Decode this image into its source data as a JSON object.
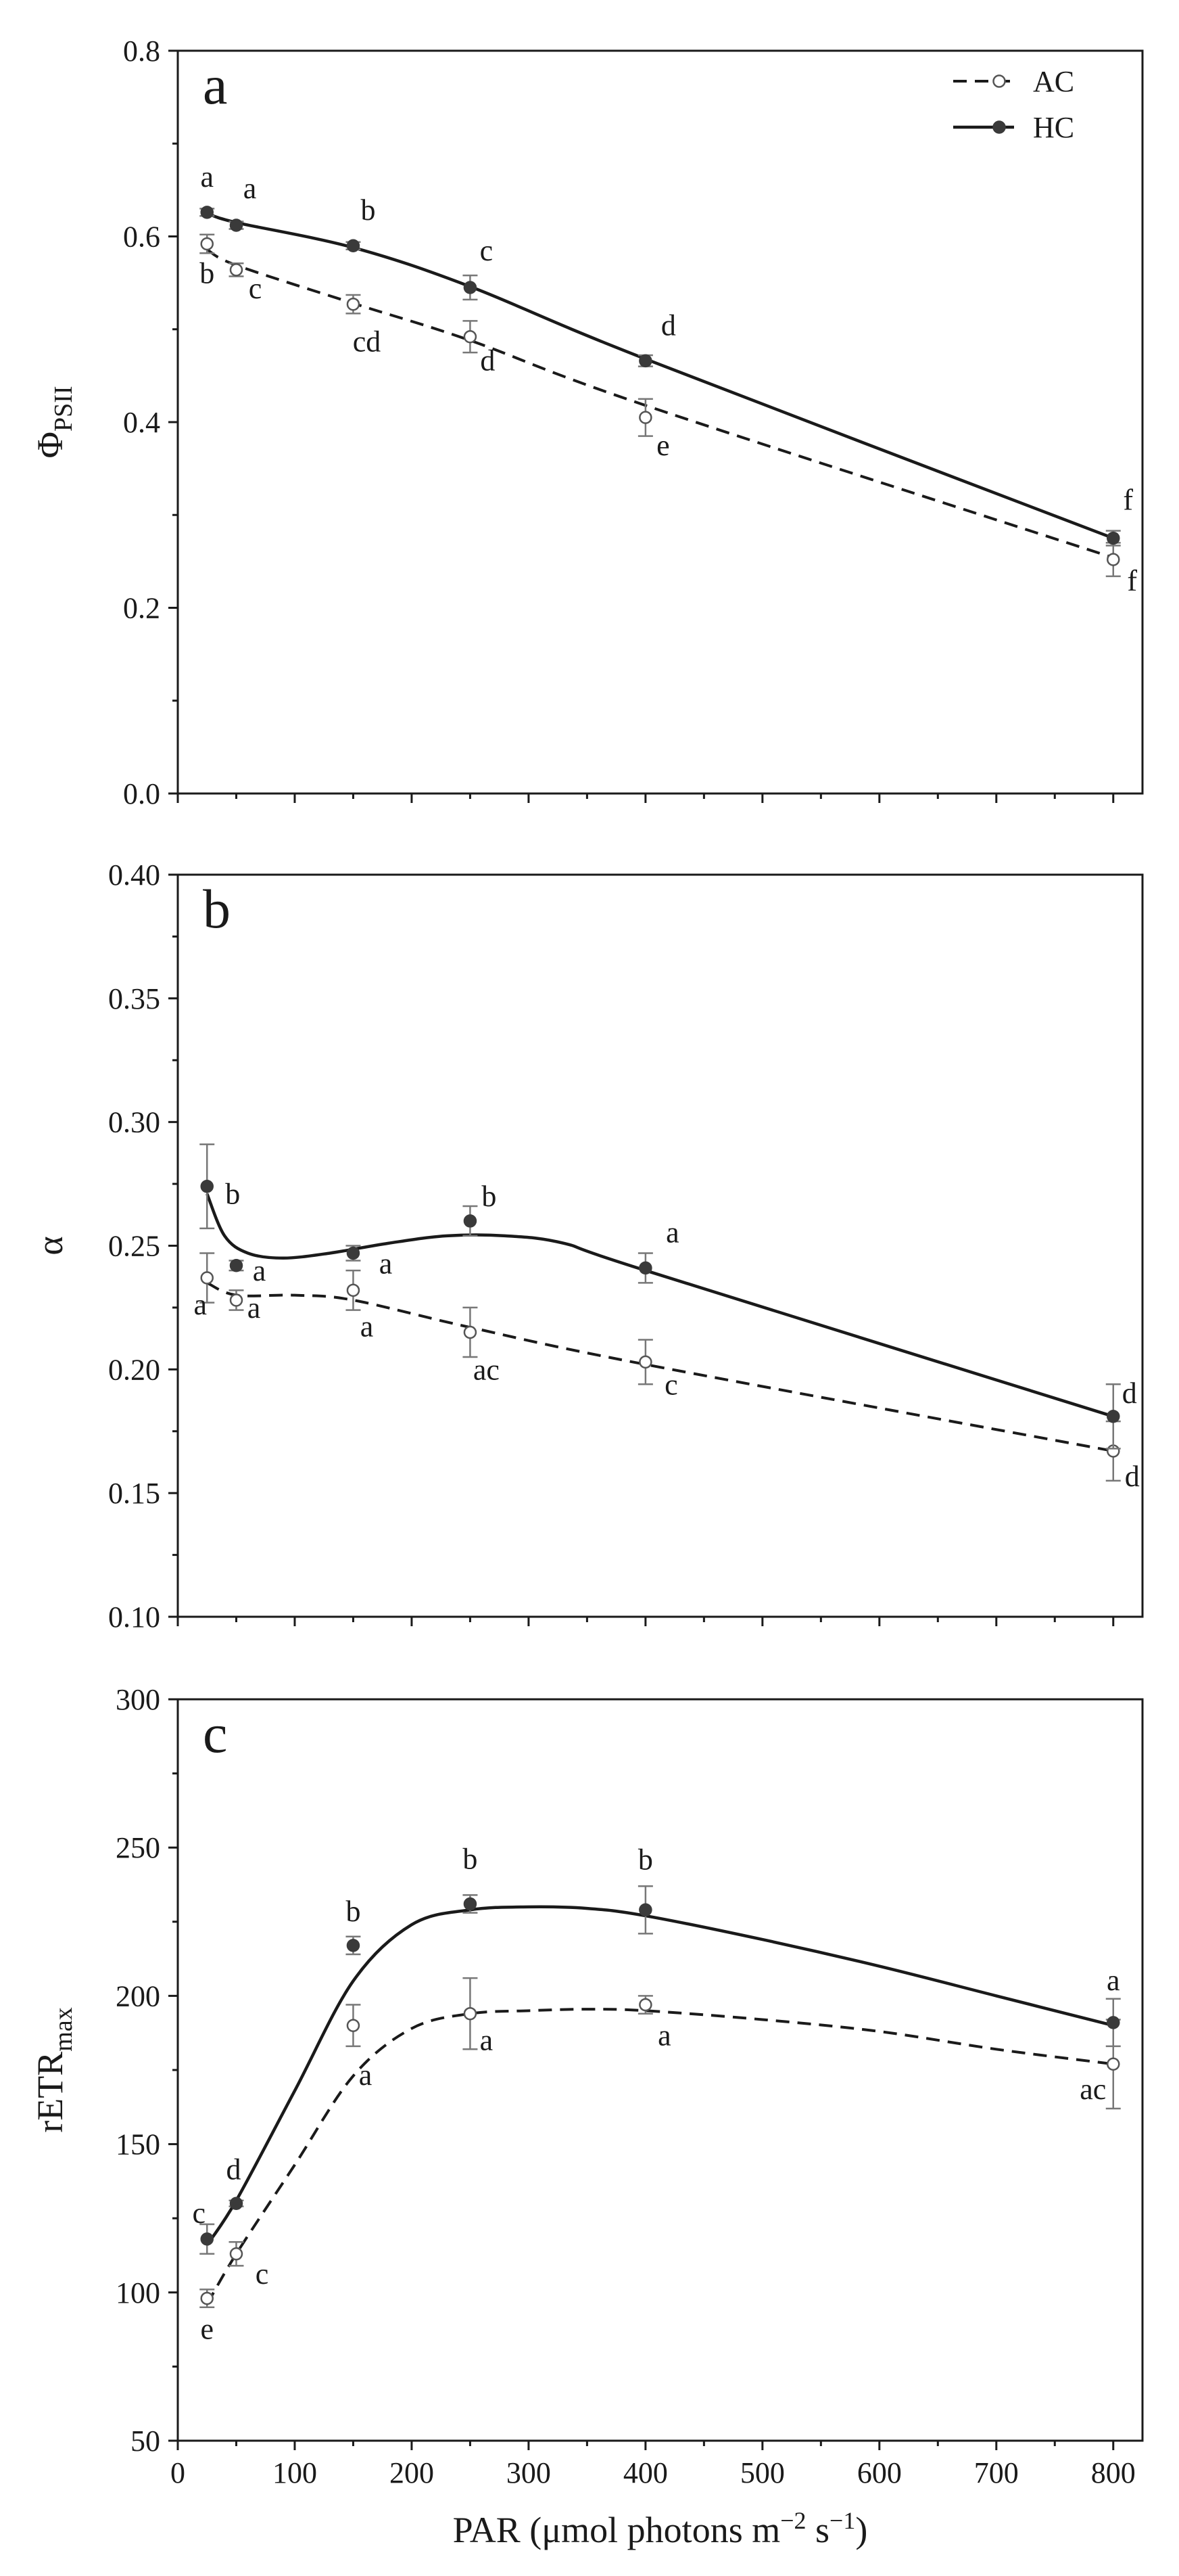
{
  "chart_data": [
    {
      "panel": "a",
      "type": "line",
      "ylabel": "Φ",
      "ylabel_sub": "PSII",
      "xlim": [
        0,
        825
      ],
      "ylim": [
        0.0,
        0.8
      ],
      "yticks": [
        0.0,
        0.2,
        0.4,
        0.6,
        0.8
      ],
      "ytick_labels": [
        "0.0",
        "0.2",
        "0.4",
        "0.6",
        "0.8"
      ],
      "legend_position": "top-right",
      "series": [
        {
          "name": "AC",
          "style": "dashed",
          "marker": "open-circle",
          "x": [
            25,
            50,
            150,
            250,
            400,
            800
          ],
          "values": [
            0.592,
            0.564,
            0.527,
            0.492,
            0.405,
            0.252
          ],
          "errors": [
            0.01,
            0.007,
            0.01,
            0.017,
            0.02,
            0.018
          ],
          "labels": [
            "b",
            "c",
            "cd",
            "d",
            "e",
            "f"
          ],
          "curve": [
            [
              25,
              0.586
            ],
            [
              50,
              0.569
            ],
            [
              150,
              0.528
            ],
            [
              250,
              0.488
            ],
            [
              400,
              0.418
            ],
            [
              800,
              0.254
            ]
          ]
        },
        {
          "name": "HC",
          "style": "solid",
          "marker": "filled-circle",
          "x": [
            25,
            50,
            150,
            250,
            400,
            800
          ],
          "values": [
            0.626,
            0.612,
            0.59,
            0.545,
            0.466,
            0.275
          ],
          "errors": [
            0.004,
            0.004,
            0.004,
            0.013,
            0.006,
            0.008
          ],
          "labels": [
            "a",
            "a",
            "b",
            "c",
            "d",
            "f"
          ],
          "curve": [
            [
              25,
              0.625
            ],
            [
              50,
              0.615
            ],
            [
              150,
              0.588
            ],
            [
              250,
              0.546
            ],
            [
              400,
              0.468
            ],
            [
              800,
              0.275
            ]
          ]
        }
      ]
    },
    {
      "panel": "b",
      "type": "line",
      "ylabel": "α",
      "ylim": [
        0.1,
        0.4
      ],
      "yticks": [
        0.1,
        0.15,
        0.2,
        0.25,
        0.3,
        0.35,
        0.4
      ],
      "ytick_labels": [
        "0.10",
        "0.15",
        "0.20",
        "0.25",
        "0.30",
        "0.35",
        "0.40"
      ],
      "series": [
        {
          "name": "AC",
          "style": "dashed",
          "marker": "open-circle",
          "x": [
            25,
            50,
            150,
            250,
            400,
            800
          ],
          "values": [
            0.237,
            0.228,
            0.232,
            0.215,
            0.203,
            0.167
          ],
          "errors": [
            0.01,
            0.004,
            0.008,
            0.01,
            0.009,
            0.012
          ],
          "labels": [
            "a",
            "a",
            "a",
            "ac",
            "c",
            "d"
          ],
          "curve": [
            [
              25,
              0.235
            ],
            [
              50,
              0.23
            ],
            [
              100,
              0.23
            ],
            [
              150,
              0.228
            ],
            [
              250,
              0.217
            ],
            [
              400,
              0.202
            ],
            [
              800,
              0.167
            ]
          ]
        },
        {
          "name": "HC",
          "style": "solid",
          "marker": "filled-circle",
          "x": [
            25,
            50,
            150,
            250,
            400,
            800
          ],
          "values": [
            0.274,
            0.242,
            0.247,
            0.26,
            0.241,
            0.181
          ],
          "errors": [
            0.017,
            0.002,
            0.003,
            0.006,
            0.006,
            0.013
          ],
          "labels": [
            "b",
            "a",
            "a",
            "b",
            "a",
            "d"
          ],
          "curve": [
            [
              25,
              0.271
            ],
            [
              40,
              0.254
            ],
            [
              60,
              0.247
            ],
            [
              90,
              0.245
            ],
            [
              130,
              0.247
            ],
            [
              180,
              0.251
            ],
            [
              230,
              0.254
            ],
            [
              280,
              0.254
            ],
            [
              330,
              0.251
            ],
            [
              400,
              0.24
            ],
            [
              800,
              0.181
            ]
          ]
        }
      ]
    },
    {
      "panel": "c",
      "type": "line",
      "ylabel": "rETR",
      "ylabel_sub": "max",
      "xlabel": "PAR (μmol photons m",
      "xlabel_sup1": "−2",
      "xlabel_mid": " s",
      "xlabel_sup2": "−1",
      "xlabel_end": ")",
      "ylim": [
        50,
        300
      ],
      "yticks": [
        50,
        100,
        150,
        200,
        250,
        300
      ],
      "ytick_labels": [
        "50",
        "100",
        "150",
        "200",
        "250",
        "300"
      ],
      "xticks": [
        0,
        100,
        200,
        300,
        400,
        500,
        600,
        700,
        800
      ],
      "xtick_labels": [
        "0",
        "100",
        "200",
        "300",
        "400",
        "500",
        "600",
        "700",
        "800"
      ],
      "series": [
        {
          "name": "AC",
          "style": "dashed",
          "marker": "open-circle",
          "x": [
            25,
            50,
            150,
            250,
            400,
            800
          ],
          "values": [
            98,
            113,
            190,
            194,
            197,
            177
          ],
          "errors": [
            3,
            4,
            7,
            12,
            3,
            15
          ],
          "labels": [
            "e",
            "c",
            "a",
            "a",
            "a",
            "ac"
          ],
          "curve": [
            [
              25,
              96
            ],
            [
              50,
              113
            ],
            [
              100,
              143
            ],
            [
              150,
              173
            ],
            [
              200,
              189
            ],
            [
              250,
              194
            ],
            [
              300,
              195
            ],
            [
              350,
              195.5
            ],
            [
              400,
              195
            ],
            [
              500,
              192
            ],
            [
              600,
              188
            ],
            [
              700,
              182
            ],
            [
              800,
              177
            ]
          ]
        },
        {
          "name": "HC",
          "style": "solid",
          "marker": "filled-circle",
          "x": [
            25,
            50,
            150,
            250,
            400,
            800
          ],
          "values": [
            118,
            130,
            217,
            231,
            229,
            191
          ],
          "errors": [
            5,
            1,
            3,
            3,
            8,
            8
          ],
          "labels": [
            "c",
            "d",
            "b",
            "b",
            "b",
            "a"
          ],
          "curve": [
            [
              25,
              116
            ],
            [
              50,
              131
            ],
            [
              100,
              168
            ],
            [
              150,
              205
            ],
            [
              200,
              224
            ],
            [
              250,
              229
            ],
            [
              300,
              230
            ],
            [
              350,
              229.5
            ],
            [
              400,
              227
            ],
            [
              500,
              219
            ],
            [
              600,
              210
            ],
            [
              700,
              200
            ],
            [
              800,
              190
            ]
          ]
        }
      ]
    }
  ]
}
